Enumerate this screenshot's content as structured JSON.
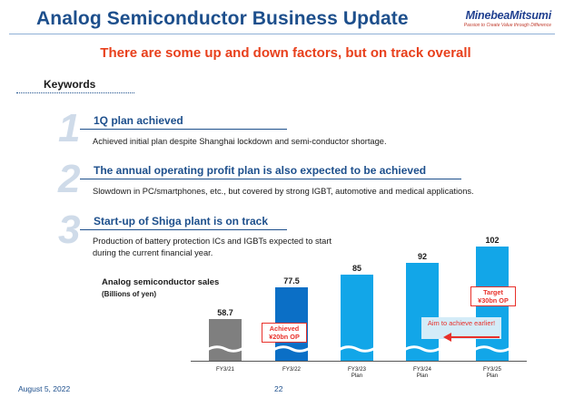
{
  "header": {
    "title": "Analog Semiconductor Business Update",
    "brand": "MinebeaMitsumi",
    "brand_tagline": "Passion to Create Value through Difference"
  },
  "subtitle": "There are some up and down factors, but on track overall",
  "keywords_label": "Keywords",
  "points": [
    {
      "number": "1",
      "heading": "1Q plan achieved",
      "text": "Achieved initial plan despite Shanghai lockdown and semi-conductor shortage."
    },
    {
      "number": "2",
      "heading": "The annual operating profit plan is also expected to be achieved",
      "text": "Slowdown in PC/smartphones, etc., but covered by strong IGBT, automotive and medical applications."
    },
    {
      "number": "3",
      "heading": "Start-up of Shiga plant is on track",
      "text_line1": "Production of battery protection ICs and IGBTs expected to start",
      "text_line2": "during the current financial year."
    }
  ],
  "chart_data": {
    "type": "bar",
    "title": "Analog semiconductor sales",
    "ylabel": "(Billions of yen)",
    "categories": [
      "FY3/21",
      "FY3/22",
      "FY3/23 Plan",
      "FY3/24 Plan",
      "FY3/25 Plan"
    ],
    "category_lines": [
      [
        "FY3/21",
        ""
      ],
      [
        "FY3/22",
        ""
      ],
      [
        "FY3/23",
        "Plan"
      ],
      [
        "FY3/24",
        "Plan"
      ],
      [
        "FY3/25",
        "Plan"
      ]
    ],
    "values": [
      58.7,
      77.5,
      85,
      92,
      102
    ],
    "value_labels": [
      "58.7",
      "77.5",
      "85",
      "92",
      "102"
    ],
    "colors": [
      "#7f7f7f",
      "#0b6fc6",
      "#12a6e8",
      "#12a6e8",
      "#12a6e8"
    ],
    "axis_break": true,
    "annotations": {
      "achieved_line1": "Achieved",
      "achieved_line2": "¥20bn OP",
      "target_line1": "Target",
      "target_line2": "¥30bn OP",
      "aim": "Aim to achieve earlier!"
    }
  },
  "footer": {
    "date": "August 5, 2022",
    "page": "22"
  },
  "colors": {
    "title_blue": "#1d4f8c",
    "accent_red": "#e8401c",
    "number_gray": "#cfdbe9"
  }
}
